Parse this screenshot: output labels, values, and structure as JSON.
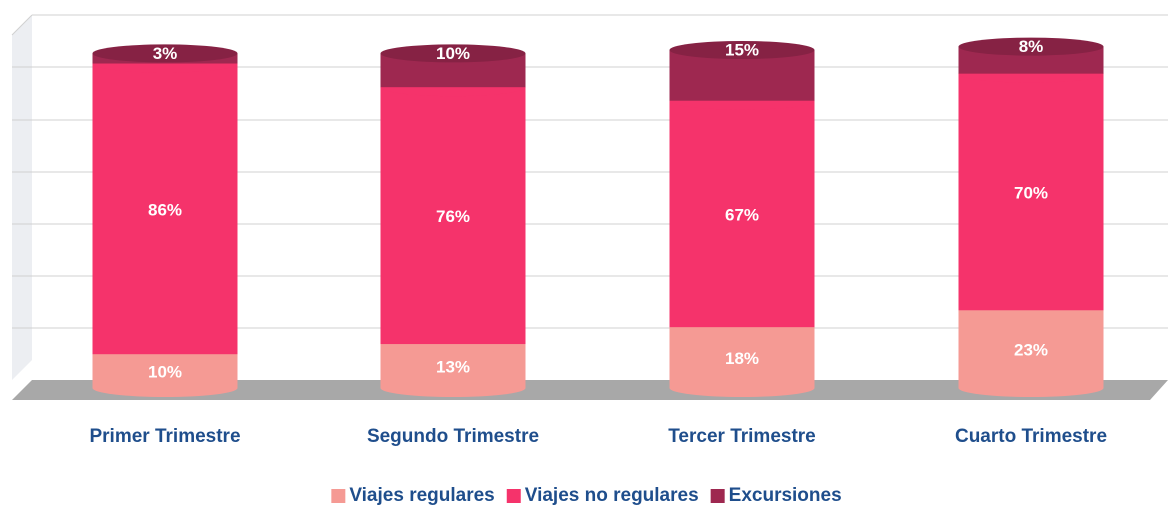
{
  "chart_data": {
    "type": "bar",
    "categories": [
      "Primer Trimestre",
      "Segundo Trimestre",
      "Tercer Trimestre",
      "Cuarto Trimestre"
    ],
    "series": [
      {
        "name": "Viajes regulares",
        "color": "#f59a94",
        "values": [
          10,
          13,
          18,
          23
        ],
        "value_labels": [
          "10%",
          "13%",
          "18%",
          "23%"
        ]
      },
      {
        "name": "Viajes no regulares",
        "color": "#f5336b",
        "values": [
          86,
          76,
          67,
          70
        ],
        "value_labels": [
          "86%",
          "76%",
          "67%",
          "70%"
        ]
      },
      {
        "name": "Excursiones",
        "color": "#9e2850",
        "values": [
          3,
          10,
          15,
          8
        ],
        "value_labels": [
          "3%",
          "10%",
          "15%",
          "8%"
        ]
      }
    ]
  }
}
